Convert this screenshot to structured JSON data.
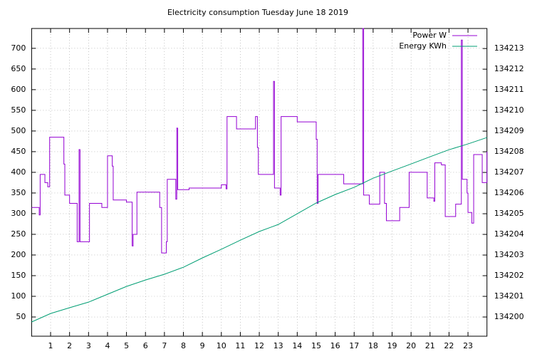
{
  "chart_data": {
    "type": "line",
    "title": "Electricity consumption Tuesday June 18 2019",
    "xlim": [
      0,
      24
    ],
    "xticks": [
      1,
      2,
      3,
      4,
      5,
      6,
      7,
      8,
      9,
      10,
      11,
      12,
      13,
      14,
      15,
      16,
      17,
      18,
      19,
      20,
      21,
      22,
      23
    ],
    "ylim": [
      3.5,
      748
    ],
    "yticks": [
      50,
      100,
      150,
      200,
      250,
      300,
      350,
      400,
      450,
      500,
      550,
      600,
      650,
      700
    ],
    "y2lim": [
      134199.07,
      134213.97
    ],
    "y2ticks": [
      134200,
      134201,
      134202,
      134203,
      134204,
      134205,
      134206,
      134207,
      134208,
      134209,
      134210,
      134211,
      134212,
      134213
    ],
    "grid": true,
    "legend": "top-right",
    "series": [
      {
        "name": "Power W",
        "color": "#9400d3",
        "step": "post",
        "x": [
          0,
          0.4,
          0.45,
          0.7,
          0.85,
          0.95,
          1.7,
          1.75,
          2.0,
          2.4,
          2.5,
          2.55,
          3.05,
          3.7,
          4.0,
          4.25,
          4.3,
          5.0,
          5.3,
          5.35,
          5.55,
          6.75,
          6.85,
          7.1,
          7.15,
          7.6,
          7.65,
          7.7,
          8.3,
          10.0,
          10.25,
          10.3,
          10.8,
          11.8,
          11.9,
          11.95,
          12.75,
          12.8,
          13.1,
          13.15,
          14.0,
          15.0,
          15.05,
          15.1,
          16.45,
          17.45,
          17.5,
          17.8,
          18.35,
          18.6,
          18.7,
          19.4,
          19.9,
          20.85,
          21.2,
          21.25,
          21.6,
          21.8,
          22.35,
          22.65,
          22.7,
          22.95,
          23.0,
          23.2,
          23.3,
          23.75,
          24
        ],
        "values": [
          315,
          297,
          395,
          375,
          365,
          485,
          420,
          345,
          325,
          232,
          455,
          232,
          325,
          315,
          440,
          415,
          333,
          328,
          222,
          250,
          352,
          315,
          205,
          232,
          383,
          335,
          507,
          358,
          362,
          370,
          360,
          535,
          505,
          535,
          460,
          395,
          620,
          362,
          345,
          535,
          522,
          480,
          325,
          395,
          372,
          748,
          345,
          323,
          400,
          325,
          283,
          315,
          400,
          338,
          330,
          423,
          418,
          293,
          323,
          720,
          383,
          350,
          303,
          277,
          443,
          375,
          450
        ]
      },
      {
        "name": "Energy KWh",
        "color": "#009e73",
        "axis": "y2",
        "x": [
          0,
          1,
          2,
          3,
          4,
          5,
          6,
          7,
          8,
          9,
          10,
          11,
          12,
          13,
          14,
          15,
          16,
          17,
          18,
          19,
          20,
          21,
          22,
          23,
          24
        ],
        "values": [
          134199.76,
          134200.17,
          134200.45,
          134200.72,
          134201.1,
          134201.48,
          134201.79,
          134202.07,
          134202.41,
          134202.86,
          134203.28,
          134203.72,
          134204.14,
          134204.48,
          134205.0,
          134205.52,
          134205.93,
          134206.28,
          134206.72,
          134207.07,
          134207.41,
          134207.76,
          134208.1,
          134208.38,
          134208.69
        ]
      }
    ]
  }
}
